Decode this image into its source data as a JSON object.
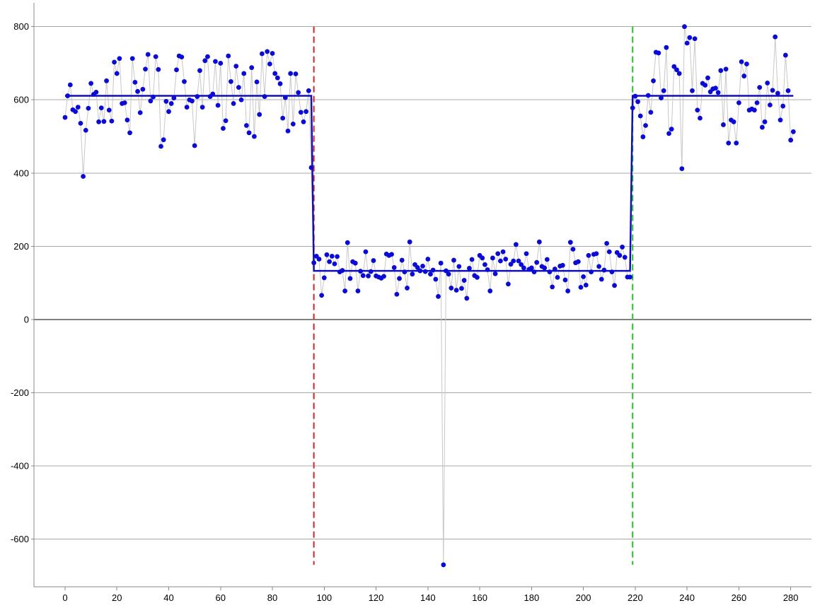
{
  "chart_data": {
    "type": "scatter",
    "title": "",
    "xlabel": "",
    "ylabel": "",
    "xlim": [
      -12,
      288
    ],
    "ylim": [
      -730,
      865
    ],
    "x_ticks": [
      0,
      20,
      40,
      60,
      80,
      100,
      120,
      140,
      160,
      180,
      200,
      220,
      240,
      260,
      280
    ],
    "y_ticks": [
      800,
      600,
      400,
      200,
      0,
      -200,
      -400,
      -600
    ],
    "grid": true,
    "legend": "none",
    "colors": {
      "points": "#0b0bd8",
      "connector": "#c8c8c8",
      "step": "#1010b8",
      "grid": "#a8a8a8",
      "zero_line": "#000000",
      "changepoint_1": "#e02020",
      "changepoint_2": "#22c522"
    },
    "series": [
      {
        "values": [
          552,
          611,
          641,
          573,
          568,
          580,
          536,
          391,
          517,
          577,
          645,
          615,
          621,
          540,
          578,
          541,
          652,
          572,
          542,
          703,
          672,
          713,
          590,
          592,
          545,
          510,
          713,
          648,
          623,
          565,
          629,
          684,
          724,
          597,
          608,
          718,
          683,
          473,
          491,
          596,
          568,
          590,
          605,
          682,
          720,
          717,
          650,
          580,
          600,
          597,
          475,
          609,
          680,
          580,
          707,
          718,
          609,
          616,
          705,
          585,
          700,
          522,
          543,
          720,
          650,
          590,
          692,
          634,
          600,
          672,
          530,
          510,
          688,
          500,
          649,
          560,
          726,
          609,
          732,
          698,
          727,
          672,
          660,
          644,
          550,
          606,
          515,
          672,
          534,
          671,
          620,
          566,
          540,
          568,
          625,
          415,
          155,
          173,
          165,
          66,
          114,
          177,
          158,
          173,
          152,
          172,
          130,
          134,
          78,
          210,
          112,
          158,
          154,
          78,
          132,
          120,
          185,
          119,
          131,
          161,
          119,
          116,
          113,
          118,
          179,
          175,
          178,
          142,
          69,
          112,
          162,
          130,
          86,
          212,
          124,
          150,
          142,
          133,
          146,
          131,
          165,
          124,
          135,
          110,
          63,
          154,
          -670,
          133,
          124,
          86,
          162,
          80,
          145,
          85,
          107,
          58,
          140,
          164,
          120,
          115,
          175,
          168,
          150,
          136,
          78,
          168,
          125,
          180,
          160,
          185,
          165,
          97,
          151,
          160,
          205,
          160,
          150,
          141,
          180,
          137,
          141,
          130,
          156,
          212,
          145,
          141,
          164,
          130,
          89,
          138,
          115,
          146,
          148,
          108,
          78,
          211,
          192,
          155,
          158,
          88,
          117,
          94,
          175,
          130,
          178,
          180,
          145,
          110,
          135,
          208,
          185,
          130,
          93,
          183,
          175,
          198,
          170,
          116,
          116,
          578,
          610,
          595,
          556,
          499,
          530,
          612,
          566,
          652,
          730,
          728,
          605,
          625,
          743,
          508,
          520,
          691,
          682,
          672,
          412,
          800,
          755,
          770,
          625,
          767,
          572,
          550,
          645,
          640,
          660,
          622,
          630,
          632,
          620,
          680,
          532,
          684,
          482,
          545,
          540,
          482,
          592,
          704,
          665,
          698,
          572,
          575,
          572,
          592,
          634,
          525,
          540,
          646,
          586,
          626,
          772,
          618,
          545,
          583,
          722,
          625,
          490,
          513
        ]
      }
    ],
    "step_segments": [
      {
        "x_start": 0,
        "x_end": 95,
        "value": 611
      },
      {
        "x_start": 96,
        "x_end": 218,
        "value": 133
      },
      {
        "x_start": 219,
        "x_end": 281,
        "value": 611
      }
    ],
    "changepoints": [
      96,
      219
    ]
  }
}
